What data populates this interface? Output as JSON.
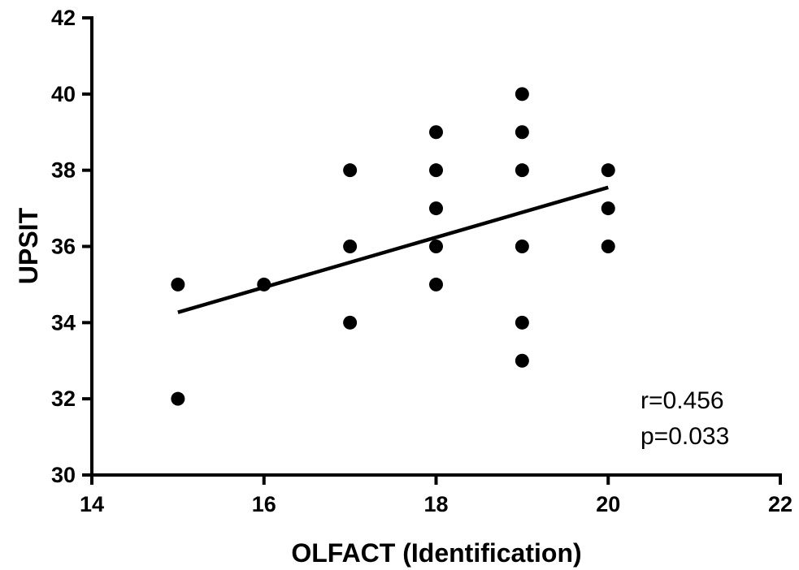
{
  "chart_data": {
    "type": "scatter",
    "title": "",
    "xlabel": "OLFACT (Identification)",
    "ylabel": "UPSIT",
    "xlim": [
      14,
      22
    ],
    "ylim": [
      30,
      42
    ],
    "x_ticks": [
      "14",
      "16",
      "18",
      "20",
      "22"
    ],
    "y_ticks": [
      "30",
      "32",
      "34",
      "36",
      "38",
      "40",
      "42"
    ],
    "grid": false,
    "marker_color": "#000000",
    "series": [
      {
        "points": [
          {
            "x": 15,
            "y": 35
          },
          {
            "x": 15,
            "y": 32
          },
          {
            "x": 16,
            "y": 35
          },
          {
            "x": 17,
            "y": 38
          },
          {
            "x": 17,
            "y": 36
          },
          {
            "x": 17,
            "y": 34
          },
          {
            "x": 18,
            "y": 39
          },
          {
            "x": 18,
            "y": 38
          },
          {
            "x": 18,
            "y": 37
          },
          {
            "x": 18,
            "y": 36
          },
          {
            "x": 18,
            "y": 35
          },
          {
            "x": 19,
            "y": 40
          },
          {
            "x": 19,
            "y": 39
          },
          {
            "x": 19,
            "y": 38
          },
          {
            "x": 19,
            "y": 36
          },
          {
            "x": 19,
            "y": 34
          },
          {
            "x": 19,
            "y": 33
          },
          {
            "x": 20,
            "y": 38
          },
          {
            "x": 20,
            "y": 37
          },
          {
            "x": 20,
            "y": 36
          }
        ]
      }
    ],
    "trend_line": {
      "x_start": 15,
      "y_start": 34.27,
      "x_end": 20,
      "y_end": 37.55
    },
    "annotations": [
      "r=0.456",
      "p=0.033"
    ]
  }
}
